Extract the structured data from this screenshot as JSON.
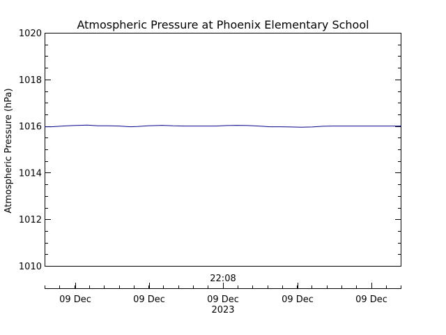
{
  "chart_data": {
    "type": "line",
    "title": "Atmospheric Pressure at Phoenix Elementary School",
    "ylabel": "Atmospheric Pressure (hPa)",
    "ylim": [
      1010,
      1020
    ],
    "yticks": [
      "1010",
      "1012",
      "1014",
      "1016",
      "1018",
      "1020"
    ],
    "y_minor_step": 0.5,
    "grid": false,
    "x_time_label": "22:08",
    "xticks": [
      "09 Dec",
      "09 Dec",
      "09 Dec",
      "09 Dec",
      "09 Dec"
    ],
    "x_year_label": "2023",
    "series": [
      {
        "color": "#00008b",
        "x": [
          0,
          0.02,
          0.05,
          0.08,
          0.12,
          0.15,
          0.18,
          0.21,
          0.24,
          0.26,
          0.29,
          0.33,
          0.36,
          0.39,
          0.42,
          0.45,
          0.48,
          0.51,
          0.54,
          0.57,
          0.6,
          0.63,
          0.66,
          0.69,
          0.72,
          0.75,
          0.78,
          0.81,
          0.84,
          0.87,
          0.9,
          0.93,
          0.96,
          1.0
        ],
        "values": [
          1015.97,
          1015.97,
          1016.0,
          1016.02,
          1016.04,
          1016.01,
          1016.01,
          1016.0,
          1015.97,
          1015.98,
          1016.01,
          1016.03,
          1016.01,
          1016.0,
          1016.0,
          1016.0,
          1016.0,
          1016.02,
          1016.03,
          1016.02,
          1016.0,
          1015.97,
          1015.97,
          1015.96,
          1015.95,
          1015.96,
          1015.99,
          1016.0,
          1016.0,
          1016.0,
          1016.0,
          1016.0,
          1016.0,
          1016.0
        ]
      }
    ]
  }
}
